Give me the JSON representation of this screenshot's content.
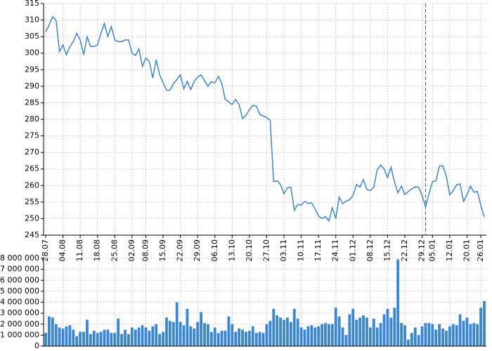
{
  "chart_data": [
    {
      "type": "line",
      "color": "#3a86d6",
      "grid": true,
      "categories": [
        "28.07",
        null,
        null,
        null,
        null,
        "04.08",
        null,
        null,
        null,
        null,
        "11.08",
        null,
        null,
        null,
        null,
        "18.08",
        null,
        null,
        null,
        null,
        "25.08",
        null,
        null,
        null,
        null,
        "02.09",
        null,
        null,
        null,
        "08.09",
        null,
        null,
        null,
        null,
        "15.09",
        null,
        null,
        null,
        null,
        "22.09",
        null,
        null,
        null,
        null,
        "29.09",
        null,
        null,
        null,
        null,
        "06.10",
        null,
        null,
        null,
        null,
        "13.10",
        null,
        null,
        null,
        null,
        "20.10",
        null,
        null,
        null,
        null,
        "27.10",
        null,
        null,
        null,
        null,
        "03.11",
        null,
        null,
        null,
        null,
        "10.11",
        null,
        null,
        null,
        null,
        "17.11",
        null,
        null,
        null,
        null,
        "24.11",
        null,
        null,
        null,
        null,
        "01.12",
        null,
        null,
        null,
        null,
        "08.12",
        null,
        null,
        null,
        null,
        "15.12",
        null,
        null,
        null,
        null,
        "22.12",
        null,
        null,
        null,
        null,
        "29.12",
        null,
        null,
        "05.01",
        null,
        null,
        null,
        null,
        "12.01",
        null,
        null,
        null,
        null,
        "20.01",
        null,
        null,
        null,
        "26.01",
        null
      ],
      "values": [
        306.5,
        308.5,
        311,
        310,
        300.5,
        302.5,
        299.5,
        302,
        303.5,
        306,
        304,
        299.5,
        305,
        302,
        302,
        302.5,
        306,
        309,
        305,
        308,
        304,
        303.5,
        303.5,
        304,
        304,
        300,
        299.3,
        301.3,
        296,
        298.5,
        297.5,
        292.5,
        298,
        293.5,
        291,
        288.8,
        288.8,
        290.8,
        292,
        293.5,
        289.2,
        291.5,
        289,
        291.5,
        292.8,
        293.4,
        291.7,
        290,
        291.4,
        291,
        293,
        290.8,
        286,
        285.3,
        284.5,
        286,
        284.5,
        280.2,
        281.2,
        283,
        284.2,
        284,
        281.5,
        281,
        280.5,
        279.7,
        261.2,
        261.4,
        260.3,
        257.5,
        259.3,
        259.5,
        252.5,
        254.3,
        254.1,
        255.2,
        254.6,
        254.8,
        253,
        250.8,
        250,
        250.6,
        249.3,
        253.3,
        250,
        256.5,
        254.5,
        255.3,
        255.7,
        257,
        260.3,
        259.5,
        261.8,
        258.8,
        258.5,
        259.5,
        264.8,
        266.2,
        265,
        262.4,
        265.6,
        261,
        257.8,
        259.8,
        257.3,
        258.2,
        259,
        259.6,
        259.5,
        257,
        253.5,
        257.5,
        261.2,
        261.4,
        265.8,
        266,
        262.8,
        257.2,
        258.5,
        260.2,
        260.5,
        255.2,
        257.2,
        259.8,
        258,
        258.2,
        254,
        250.5
      ],
      "ylim": [
        245,
        315
      ],
      "yticks": [
        245,
        250,
        255,
        260,
        265,
        270,
        275,
        280,
        285,
        290,
        295,
        300,
        305,
        310,
        315
      ]
    },
    {
      "type": "bar",
      "color": "#3a86d6",
      "grid": true,
      "values": [
        1200000,
        2700000,
        2600000,
        2000000,
        1700000,
        1600000,
        1800000,
        1900000,
        1500000,
        900000,
        1300000,
        1300000,
        2400000,
        1100000,
        1400000,
        1200000,
        1300000,
        1500000,
        1500000,
        1200000,
        1200000,
        2500000,
        1100000,
        1500000,
        1100000,
        1700000,
        1500000,
        1700000,
        1900000,
        1700000,
        1400000,
        1800000,
        2000000,
        1100000,
        1300000,
        2600000,
        2300000,
        2200000,
        4000000,
        2200000,
        1900000,
        3400000,
        1800000,
        1600000,
        2200000,
        3100000,
        2100000,
        2000000,
        1300000,
        1700000,
        1200000,
        1400000,
        1400000,
        2700000,
        2000000,
        1300000,
        1600000,
        1500000,
        1300000,
        1400000,
        1800000,
        1200000,
        1300000,
        1200000,
        2000000,
        2300000,
        3400000,
        2800000,
        2600000,
        2400000,
        2600000,
        2200000,
        3400000,
        2500000,
        1700000,
        1500000,
        1800000,
        1900000,
        1700000,
        1800000,
        2000000,
        2100000,
        2000000,
        2000000,
        3500000,
        2700000,
        1700000,
        1000000,
        2900000,
        3400000,
        2400000,
        2600000,
        2800000,
        2600000,
        1700000,
        2500000,
        1700000,
        2100000,
        2900000,
        3400000,
        2600000,
        3500000,
        7900000,
        2100000,
        1900000,
        600000,
        1200000,
        1700000,
        1000000,
        1800000,
        2100000,
        2100000,
        2000000,
        1500000,
        2000000,
        1600000,
        1400000,
        1800000,
        2000000,
        1900000,
        2900000,
        2300000,
        2600000,
        2000000,
        2100000,
        2000000,
        3500000,
        4100000
      ],
      "ylim": [
        0,
        8000000
      ],
      "yticks": [
        0,
        {
          "value": 1000000,
          "label": "1 000 000"
        },
        {
          "value": 2000000,
          "label": "2 000 000"
        },
        {
          "value": 3000000,
          "label": "3 000 000"
        },
        {
          "value": 4000000,
          "label": "4 000 000"
        },
        {
          "value": 5000000,
          "label": "5 000 000"
        },
        {
          "value": 6000000,
          "label": "6 000 000"
        },
        {
          "value": 7000000,
          "label": "7 000 000"
        },
        {
          "value": 8000000,
          "label": "8 000 000"
        }
      ]
    }
  ]
}
